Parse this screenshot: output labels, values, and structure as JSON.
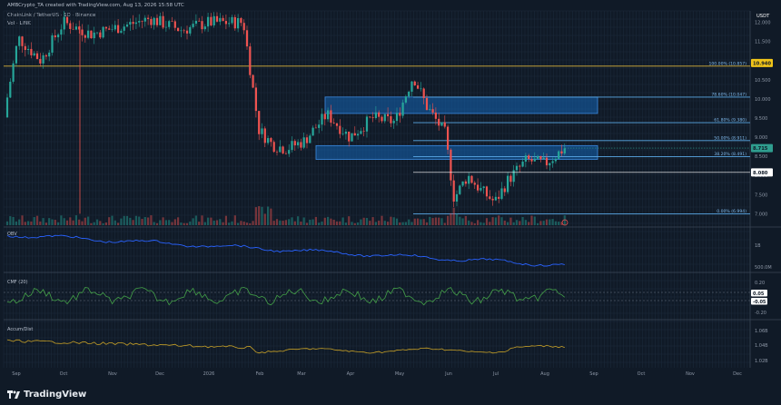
{
  "header": {
    "author_line": "AMBCrypto_TA created with TradingView.com, Aug 13, 2026 15:58 UTC",
    "symbol_line": "ChainLink / TetherUS · 1D · Binance",
    "volume_line": "Vol · LINK"
  },
  "price_axis": {
    "currency": "USDT",
    "ticks": [
      "12.000",
      "11.500",
      "11.000",
      "10.500",
      "10.000",
      "9.500",
      "9.000",
      "8.500",
      "8.000",
      "7.500",
      "7.000"
    ]
  },
  "price_markers": [
    {
      "label": "10.940",
      "role": "highlight",
      "color": "#f0c419"
    },
    {
      "label": "8.715",
      "role": "current",
      "color": "#2f9e8f"
    },
    {
      "label": "8.080",
      "role": "level",
      "color": "#ffffff"
    }
  ],
  "fib_levels": [
    {
      "label": "100.00% (10.857)",
      "price": 10.857
    },
    {
      "label": "78.60% (10.047)",
      "price": 10.047
    },
    {
      "label": "61.80% (9.380)",
      "price": 9.38
    },
    {
      "label": "50.00% (8.911)",
      "price": 8.911
    },
    {
      "label": "38.20% (8.491)",
      "price": 8.491
    },
    {
      "label": "0.00% (6.994)",
      "price": 6.994
    }
  ],
  "zones": [
    {
      "name": "supply-zone",
      "from": 9.62,
      "to": 10.05
    },
    {
      "name": "demand-zone",
      "from": 8.42,
      "to": 8.78
    }
  ],
  "indicators": {
    "obv": {
      "label": "OBV",
      "ticks": [
        "1B",
        "500.0M"
      ]
    },
    "cmf": {
      "label": "CMF (20)",
      "ticks": [
        "0.20",
        "0.05",
        "-0.05",
        "-0.20"
      ],
      "value_labels": [
        "0.05",
        "-0.05"
      ]
    },
    "ad": {
      "label": "Accum/Dist",
      "ticks": [
        "1.06B",
        "1.04B",
        "1.02B"
      ]
    }
  },
  "time_axis": [
    "Sep",
    "Oct",
    "Nov",
    "Dec",
    "2026",
    "Feb",
    "Mar",
    "Apr",
    "May",
    "Jun",
    "Jul",
    "Aug",
    "Sep",
    "Oct",
    "Nov",
    "Dec"
  ],
  "brand": {
    "name": "TradingView"
  },
  "chart_data": {
    "type": "candlestick",
    "ylim": [
      6.7,
      12.3
    ],
    "x": [
      "2025-09",
      "2026-08"
    ],
    "grid": true,
    "key_points": [
      {
        "date": "2026-01",
        "close": 11.9
      },
      {
        "date": "2026-02",
        "close": 8.4
      },
      {
        "date": "2026-03",
        "close": 9.5
      },
      {
        "date": "2026-05",
        "close": 10.6
      },
      {
        "date": "2026-06",
        "close": 7.2
      },
      {
        "date": "2026-07",
        "close": 8.0
      },
      {
        "date": "2026-08",
        "close": 8.715
      }
    ]
  }
}
